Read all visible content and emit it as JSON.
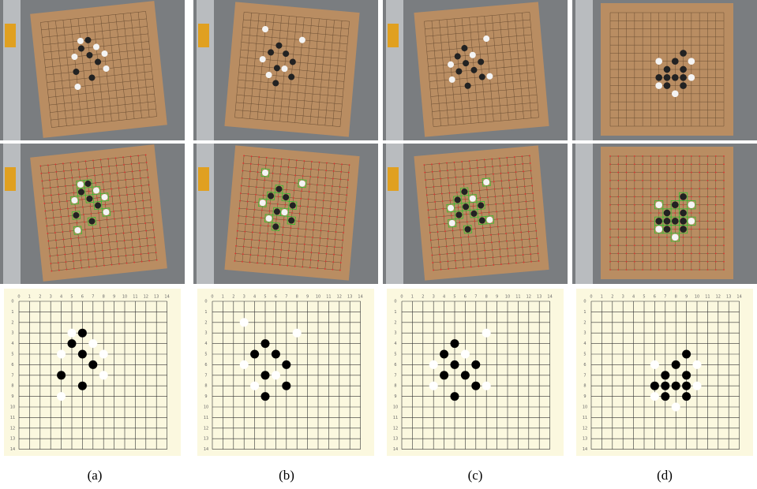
{
  "captions": [
    "(a)",
    "(b)",
    "(c)",
    "(d)"
  ],
  "board_labels": [
    "0",
    "1",
    "2",
    "3",
    "4",
    "5",
    "6",
    "7",
    "8",
    "9",
    "10",
    "11",
    "12",
    "13",
    "14"
  ]
}
